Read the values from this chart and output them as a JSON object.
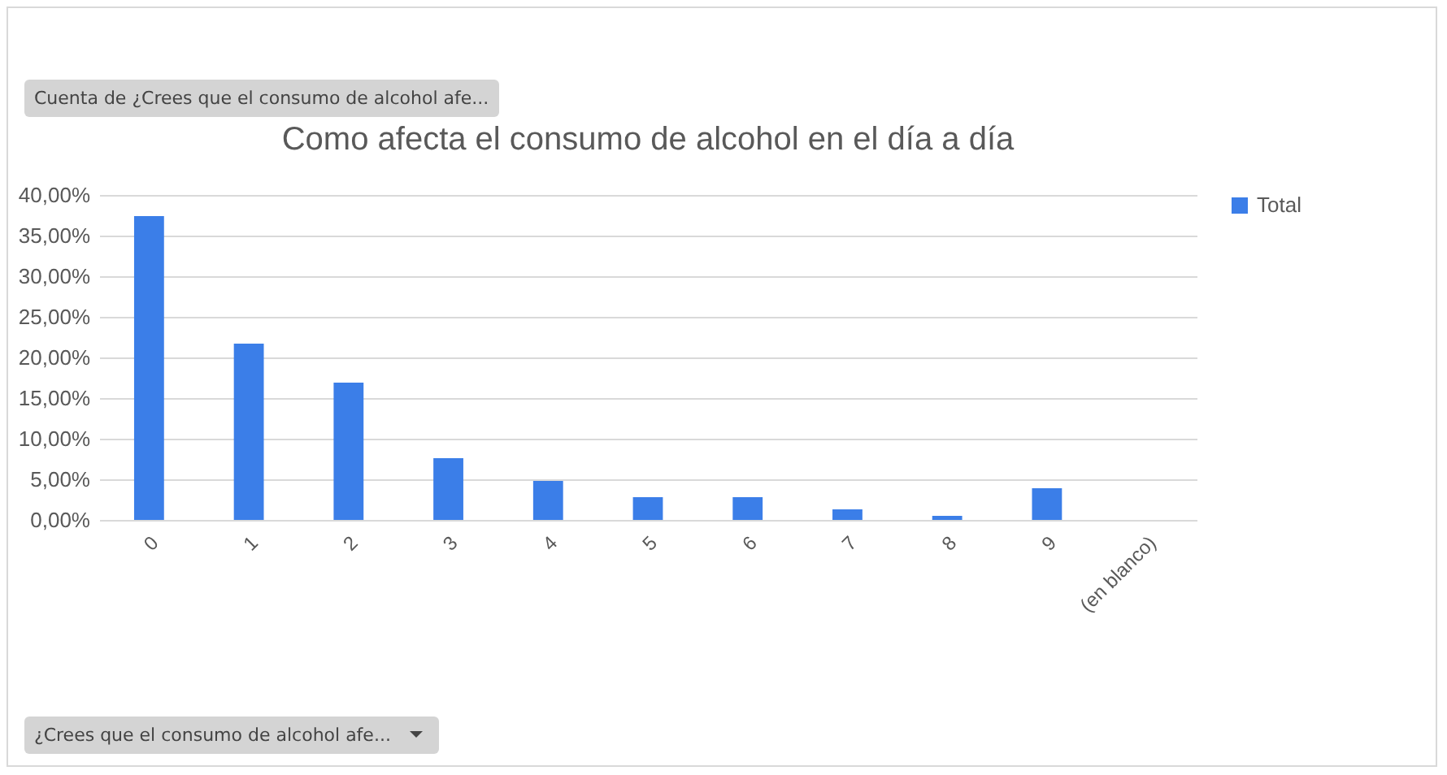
{
  "chart_data": {
    "type": "bar",
    "title": "Como afecta el consumo de alcohol en el día a día",
    "categories": [
      "0",
      "1",
      "2",
      "3",
      "4",
      "5",
      "6",
      "7",
      "8",
      "9",
      "(en blanco)"
    ],
    "series": [
      {
        "name": "Total",
        "color": "#3b7ee8",
        "values": [
          37.4,
          21.7,
          16.9,
          7.6,
          4.8,
          2.8,
          2.8,
          1.3,
          0.5,
          3.9,
          null
        ]
      }
    ],
    "ylim": [
      0,
      40
    ],
    "yticks": [
      {
        "value": 0,
        "label": "0,00%"
      },
      {
        "value": 5,
        "label": "5,00%"
      },
      {
        "value": 10,
        "label": "10,00%"
      },
      {
        "value": 15,
        "label": "15,00%"
      },
      {
        "value": 20,
        "label": "20,00%"
      },
      {
        "value": 25,
        "label": "25,00%"
      },
      {
        "value": 30,
        "label": "30,00%"
      },
      {
        "value": 35,
        "label": "35,00%"
      },
      {
        "value": 40,
        "label": "40,00%"
      }
    ],
    "grid": "y",
    "legend": "right",
    "annotations": [
      "Cuenta de ¿Crees que el consumo de alcohol afe...",
      "¿Crees que el consumo de alcohol afe..."
    ]
  }
}
